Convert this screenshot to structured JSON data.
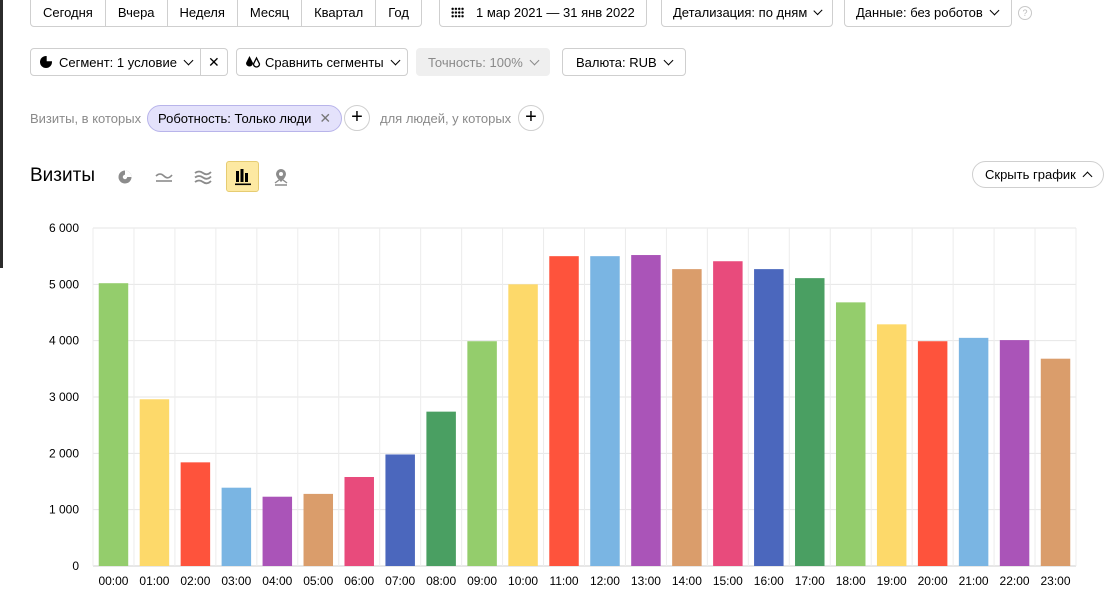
{
  "period_buttons": [
    "Сегодня",
    "Вчера",
    "Неделя",
    "Месяц",
    "Квартал",
    "Год"
  ],
  "date_range": "1 мар 2021 — 31 янв 2022",
  "detail": "Детализация: по дням",
  "data_filter": "Данные: без роботов",
  "help": "?",
  "segment": "Сегмент: 1 условие",
  "close_symbol": "✕",
  "compare": "Сравнить сегменты",
  "accuracy": "Точность: 100%",
  "currency": "Валюта: RUB",
  "filter": {
    "prefix": "Визиты, в которых",
    "chip": "Роботность: Только люди",
    "chip_close": "✕",
    "middle": "для людей, у которых",
    "plus": "+"
  },
  "title": "Визиты",
  "hide_chart": "Скрыть график",
  "view_icons": [
    "pie-chart-icon",
    "line-chart-icon",
    "area-chart-icon",
    "bar-chart-icon",
    "map-icon"
  ],
  "chart_data": {
    "type": "bar",
    "categories": [
      "00:00",
      "01:00",
      "02:00",
      "03:00",
      "04:00",
      "05:00",
      "06:00",
      "07:00",
      "08:00",
      "09:00",
      "10:00",
      "11:00",
      "12:00",
      "13:00",
      "14:00",
      "15:00",
      "16:00",
      "17:00",
      "18:00",
      "19:00",
      "20:00",
      "21:00",
      "22:00",
      "23:00"
    ],
    "values": [
      5020,
      2960,
      1840,
      1390,
      1230,
      1280,
      1580,
      1980,
      2740,
      3990,
      5000,
      5500,
      5500,
      5520,
      5270,
      5410,
      5270,
      5110,
      4680,
      4290,
      3990,
      4050,
      4010,
      3680
    ],
    "colors": [
      "#94cd6c",
      "#fdd96a",
      "#fe533c",
      "#7ab5e3",
      "#aa54b8",
      "#da9d6b",
      "#e84b7c",
      "#4b67bd",
      "#4a9f62",
      "#94cd6c",
      "#fdd96a",
      "#fe533c",
      "#7ab5e3",
      "#aa54b8",
      "#da9d6b",
      "#e84b7c",
      "#4b67bd",
      "#4a9f62",
      "#94cd6c",
      "#fdd96a",
      "#fe533c",
      "#7ab5e3",
      "#aa54b8",
      "#da9d6b"
    ],
    "ylim": [
      0,
      6000
    ],
    "yticks": [
      0,
      1000,
      2000,
      3000,
      4000,
      5000,
      6000
    ],
    "ytick_labels": [
      "0",
      "1 000",
      "2 000",
      "3 000",
      "4 000",
      "5 000",
      "6 000"
    ],
    "grid": true
  }
}
